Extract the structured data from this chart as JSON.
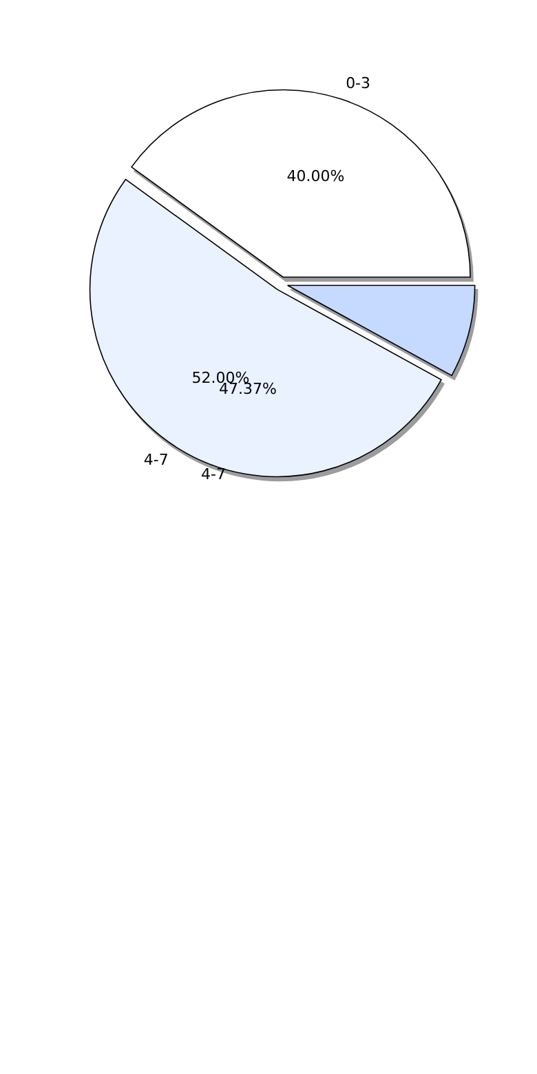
{
  "chart_data": {
    "type": "pie",
    "categories": [
      "0-3",
      "4-7",
      null
    ],
    "values": [
      40,
      52,
      8
    ],
    "colors": [
      "#ffffff",
      "#eaf1ff",
      "#c6d9ff"
    ],
    "value_labels": [
      "40.00%",
      "52.00%",
      null
    ],
    "annotations": [
      "47.37%",
      "4-7"
    ]
  }
}
